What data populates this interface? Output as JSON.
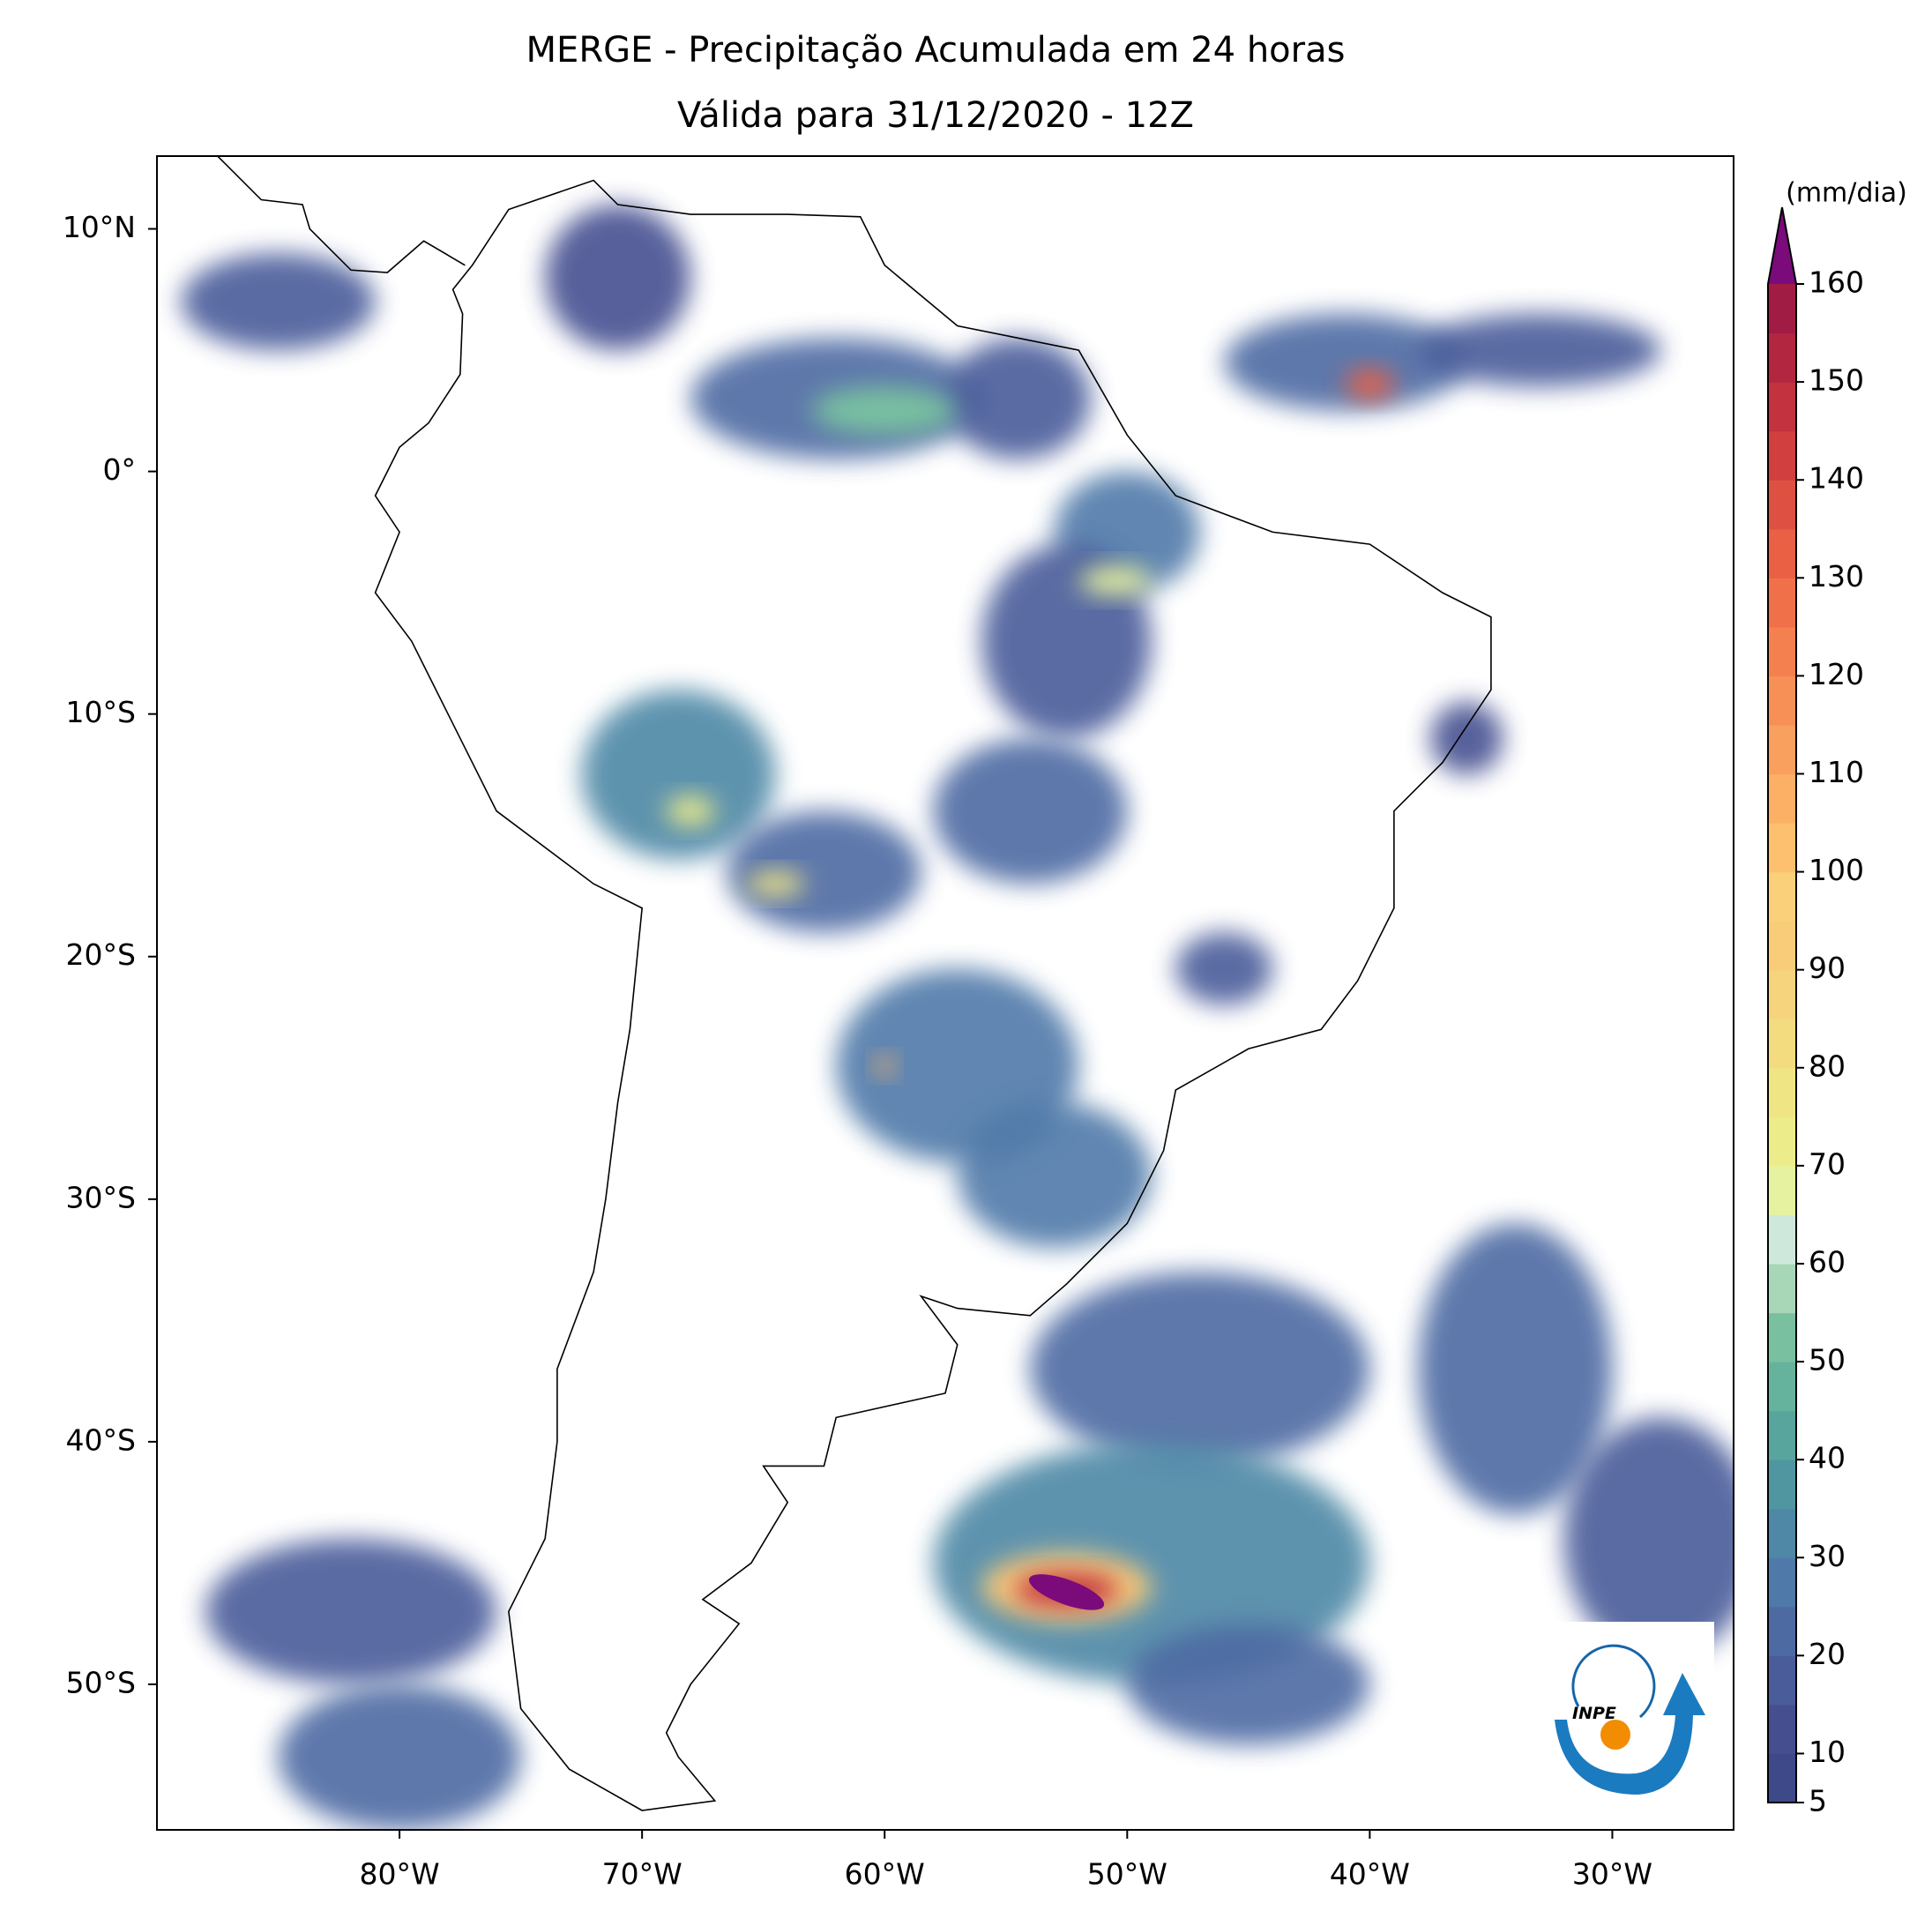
{
  "chart_data": {
    "type": "map",
    "title": "MERGE - Precipitação Acumulada em 24 horas",
    "subtitle": "Válida para 31/12/2020 - 12Z",
    "xlim": [
      -90,
      -25
    ],
    "ylim": [
      -56,
      13
    ],
    "xticks": [
      {
        "value": -80,
        "label": "80°W"
      },
      {
        "value": -70,
        "label": "70°W"
      },
      {
        "value": -60,
        "label": "60°W"
      },
      {
        "value": -50,
        "label": "50°W"
      },
      {
        "value": -40,
        "label": "40°W"
      },
      {
        "value": -30,
        "label": "30°W"
      }
    ],
    "yticks": [
      {
        "value": 10,
        "label": "10°N"
      },
      {
        "value": 0,
        "label": "0°"
      },
      {
        "value": -10,
        "label": "10°S"
      },
      {
        "value": -20,
        "label": "20°S"
      },
      {
        "value": -30,
        "label": "30°S"
      },
      {
        "value": -40,
        "label": "40°S"
      },
      {
        "value": -50,
        "label": "50°S"
      }
    ],
    "colorbar": {
      "label": "(mm/dia)",
      "lim": [
        5,
        160
      ],
      "ticks": [
        5,
        10,
        20,
        30,
        40,
        50,
        60,
        70,
        80,
        90,
        100,
        110,
        120,
        130,
        140,
        150,
        160
      ],
      "levels": [
        5,
        10,
        15,
        20,
        25,
        30,
        35,
        40,
        45,
        50,
        55,
        60,
        65,
        70,
        75,
        80,
        85,
        90,
        95,
        100,
        105,
        110,
        115,
        120,
        125,
        130,
        135,
        140,
        145,
        150,
        155,
        160
      ],
      "colors": [
        "#3e4989",
        "#454f90",
        "#4a5c9a",
        "#4e6aa3",
        "#4f79a9",
        "#4e88a6",
        "#5096a1",
        "#58a59d",
        "#66b39d",
        "#78c0a0",
        "#a8d7b8",
        "#cfe8dc",
        "#e6f2a0",
        "#ecec8a",
        "#f0e585",
        "#f3dc80",
        "#f6d47d",
        "#f8cc79",
        "#fbd07a",
        "#fcc06f",
        "#fbb066",
        "#f9a05e",
        "#f79057",
        "#f48050",
        "#f0704a",
        "#e96045",
        "#de5041",
        "#d1403f",
        "#c2323f",
        "#b22640",
        "#a01c45"
      ],
      "extend_color": "#7b0a7b"
    },
    "logo": "INPE"
  }
}
